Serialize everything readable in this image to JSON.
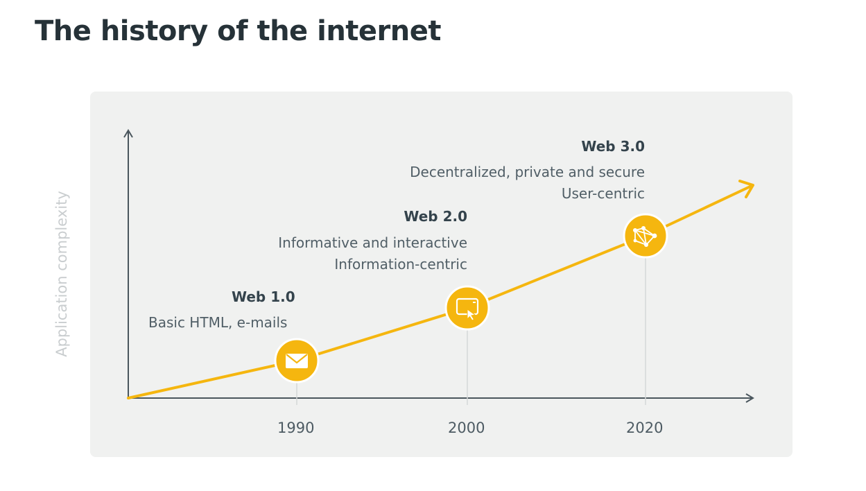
{
  "title": "The history of the internet",
  "y_axis_label": "Application complexity",
  "colors": {
    "accent": "#f5b60f",
    "axis": "#4a565d",
    "panel": "#f0f1f0",
    "text_dark": "#263238"
  },
  "eras": [
    {
      "name": "Web 1.0",
      "lines": [
        "Basic HTML, e-mails"
      ],
      "year": "1990",
      "icon": "envelope-icon"
    },
    {
      "name": "Web 2.0",
      "lines": [
        "Informative and interactive",
        "Information-centric"
      ],
      "year": "2000",
      "icon": "browser-click-icon"
    },
    {
      "name": "Web 3.0",
      "lines": [
        "Decentralized, private and secure",
        "User-centric"
      ],
      "year": "2020",
      "icon": "network-nodes-icon"
    }
  ]
}
